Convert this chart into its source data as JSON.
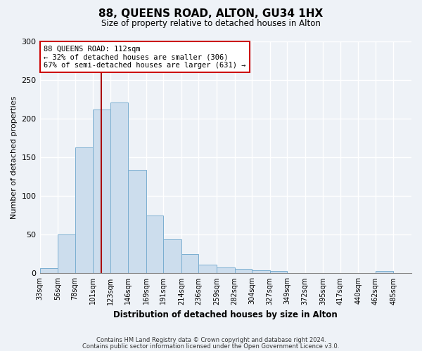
{
  "title": "88, QUEENS ROAD, ALTON, GU34 1HX",
  "subtitle": "Size of property relative to detached houses in Alton",
  "xlabel": "Distribution of detached houses by size in Alton",
  "ylabel": "Number of detached properties",
  "bar_color": "#ccdded",
  "bar_edge_color": "#7aaed0",
  "background_color": "#eef2f7",
  "grid_color": "#ffffff",
  "bin_labels": [
    "33sqm",
    "56sqm",
    "78sqm",
    "101sqm",
    "123sqm",
    "146sqm",
    "169sqm",
    "191sqm",
    "214sqm",
    "236sqm",
    "259sqm",
    "282sqm",
    "304sqm",
    "327sqm",
    "349sqm",
    "372sqm",
    "395sqm",
    "417sqm",
    "440sqm",
    "462sqm",
    "485sqm"
  ],
  "bin_values": [
    7,
    50,
    163,
    212,
    221,
    134,
    75,
    44,
    25,
    11,
    8,
    6,
    4,
    3,
    0,
    0,
    0,
    0,
    0,
    3,
    0
  ],
  "bin_edges": [
    33,
    56,
    78,
    101,
    123,
    146,
    169,
    191,
    214,
    236,
    259,
    282,
    304,
    327,
    349,
    372,
    395,
    417,
    440,
    462,
    485,
    508
  ],
  "property_size": 112,
  "property_line_color": "#aa0000",
  "annotation_text": "88 QUEENS ROAD: 112sqm\n← 32% of detached houses are smaller (306)\n67% of semi-detached houses are larger (631) →",
  "annotation_box_color": "#ffffff",
  "annotation_box_edge_color": "#cc0000",
  "ylim": [
    0,
    300
  ],
  "yticks": [
    0,
    50,
    100,
    150,
    200,
    250,
    300
  ],
  "footer1": "Contains HM Land Registry data © Crown copyright and database right 2024.",
  "footer2": "Contains public sector information licensed under the Open Government Licence v3.0."
}
